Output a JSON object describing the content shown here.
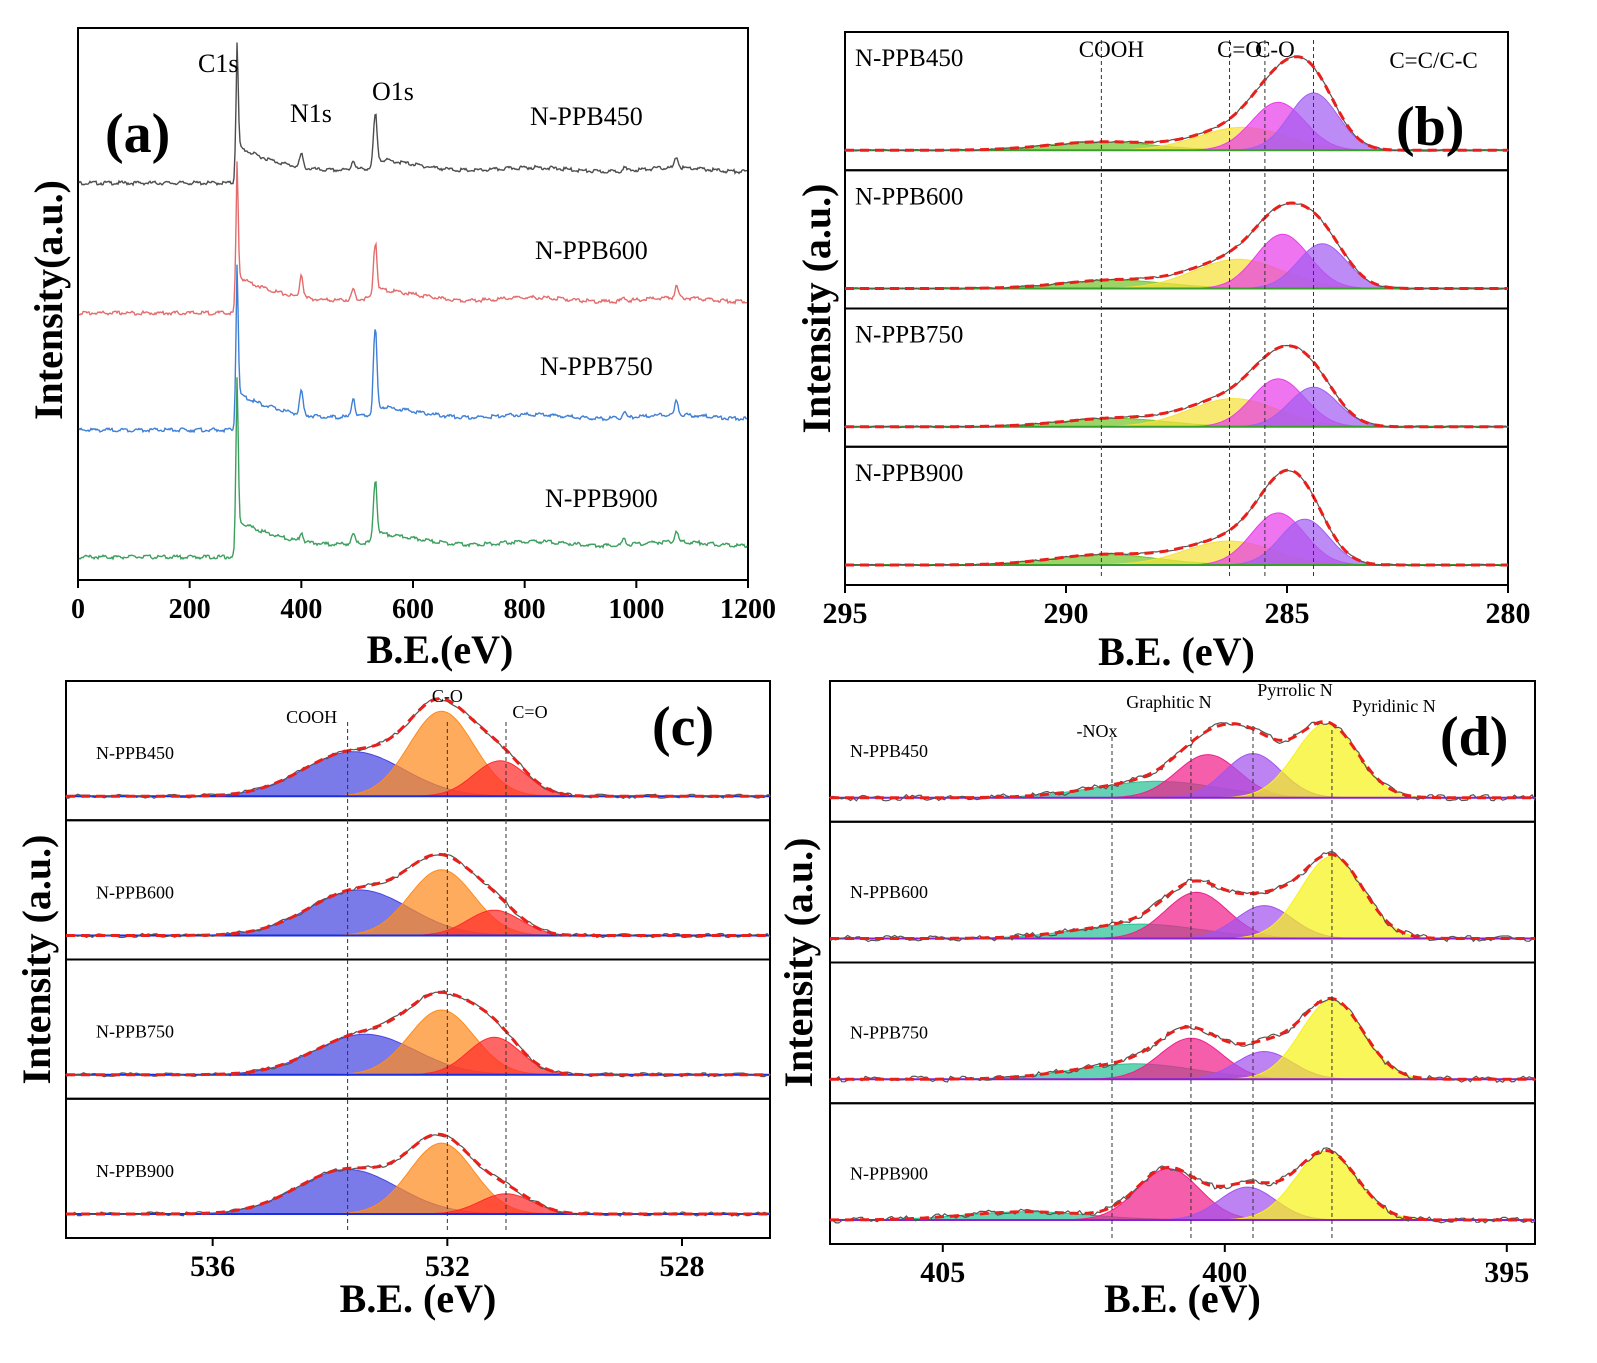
{
  "colors": {
    "black": "#000000",
    "gray_raw": "#555555",
    "envelope": "#e8201c",
    "survey": [
      "#4d4d4d",
      "#e46c6c",
      "#3f7fd6",
      "#3d9f5e"
    ],
    "b_components": [
      "#76c52c",
      "#f5e23a",
      "#e93ee9",
      "#a35ef1",
      "#1ee7f2"
    ],
    "c_components": [
      "#4747e0",
      "#ff8b1f",
      "#ff2b2b"
    ],
    "d_components": [
      "#29c295",
      "#f0208a",
      "#a353ef",
      "#f6f21a"
    ]
  },
  "chart_data": [
    {
      "panel_label": "(a)",
      "type": "line",
      "title": "",
      "xlabel": "B.E.(eV)",
      "ylabel": "Intensity(a.u.)",
      "xlim": [
        0,
        1200
      ],
      "x_ticks": [
        "0",
        "200",
        "400",
        "600",
        "800",
        "1000",
        "1200"
      ],
      "x_tick_values": [
        0,
        200,
        400,
        600,
        800,
        1000,
        1200
      ],
      "peak_labels": [
        {
          "text": "C1s",
          "x": 284.6
        },
        {
          "text": "N1s",
          "x": 399.5
        },
        {
          "text": "O1s",
          "x": 532.0
        }
      ],
      "series": [
        {
          "name": "N-PPB450",
          "peaks": [
            {
              "x": 284.6,
              "h": 0.55
            },
            {
              "x": 400,
              "h": 0.07
            },
            {
              "x": 493,
              "h": 0.05
            },
            {
              "x": 532,
              "h": 0.27
            },
            {
              "x": 978,
              "h": 0.02
            },
            {
              "x": 1072,
              "h": 0.06
            }
          ]
        },
        {
          "name": "N-PPB600",
          "peaks": [
            {
              "x": 284.6,
              "h": 0.6
            },
            {
              "x": 400,
              "h": 0.12
            },
            {
              "x": 493,
              "h": 0.05
            },
            {
              "x": 532,
              "h": 0.28
            },
            {
              "x": 978,
              "h": 0.02
            },
            {
              "x": 1072,
              "h": 0.06
            }
          ]
        },
        {
          "name": "N-PPB750",
          "peaks": [
            {
              "x": 284.6,
              "h": 0.68
            },
            {
              "x": 400,
              "h": 0.12
            },
            {
              "x": 493,
              "h": 0.1
            },
            {
              "x": 532,
              "h": 0.45
            },
            {
              "x": 978,
              "h": 0.03
            },
            {
              "x": 1072,
              "h": 0.08
            }
          ]
        },
        {
          "name": "N-PPB900",
          "peaks": [
            {
              "x": 284.6,
              "h": 0.75
            },
            {
              "x": 400,
              "h": 0.05
            },
            {
              "x": 493,
              "h": 0.05
            },
            {
              "x": 532,
              "h": 0.32
            },
            {
              "x": 978,
              "h": 0.03
            },
            {
              "x": 1072,
              "h": 0.06
            }
          ]
        }
      ]
    },
    {
      "panel_label": "(b)",
      "type": "area",
      "title": "",
      "xlabel": "B.E. (eV)",
      "ylabel": "Intensity (a.u.)",
      "xlim": [
        295,
        280
      ],
      "x_ticks": [
        "295",
        "290",
        "285",
        "280"
      ],
      "x_tick_values": [
        295,
        290,
        285,
        280
      ],
      "reference_lines": [
        {
          "label": "COOH",
          "x": 289.2
        },
        {
          "label": "C=O",
          "x": 286.3
        },
        {
          "label": "C-O",
          "x": 285.5
        },
        {
          "label": "C=C/C-C",
          "x": 284.4
        }
      ],
      "components": [
        {
          "label": "COOH",
          "width": 1.2
        },
        {
          "label": "C=O",
          "width": 1.0
        },
        {
          "label": "C-O",
          "width": 0.6
        },
        {
          "label": "C=C/C-C",
          "width": 0.55
        }
      ],
      "series": [
        {
          "name": "N-PPB450",
          "components": [
            {
              "center": 289.2,
              "height": 0.08
            },
            {
              "center": 286.0,
              "height": 0.22
            },
            {
              "center": 285.2,
              "height": 0.46
            },
            {
              "center": 284.4,
              "height": 0.55
            }
          ]
        },
        {
          "name": "N-PPB600",
          "components": [
            {
              "center": 288.9,
              "height": 0.08
            },
            {
              "center": 286.1,
              "height": 0.28
            },
            {
              "center": 285.1,
              "height": 0.52
            },
            {
              "center": 284.2,
              "height": 0.43
            }
          ]
        },
        {
          "name": "N-PPB750",
          "components": [
            {
              "center": 288.9,
              "height": 0.08
            },
            {
              "center": 286.2,
              "height": 0.27
            },
            {
              "center": 285.2,
              "height": 0.46
            },
            {
              "center": 284.4,
              "height": 0.38
            }
          ]
        },
        {
          "name": "N-PPB900",
          "components": [
            {
              "center": 289.1,
              "height": 0.1
            },
            {
              "center": 286.3,
              "height": 0.23
            },
            {
              "center": 285.2,
              "height": 0.5
            },
            {
              "center": 284.6,
              "height": 0.44
            }
          ]
        }
      ]
    },
    {
      "panel_label": "(c)",
      "type": "area",
      "title": "",
      "xlabel": "B.E. (eV)",
      "ylabel": "Intensity (a.u.)",
      "xlim": [
        538.5,
        526.5
      ],
      "x_ticks": [
        "536",
        "532",
        "528"
      ],
      "x_tick_values": [
        536,
        532,
        528
      ],
      "reference_lines": [
        {
          "label": "COOH",
          "x": 533.7
        },
        {
          "label": "C-O",
          "x": 532.0
        },
        {
          "label": "C=O",
          "x": 531.0
        }
      ],
      "components": [
        {
          "label": "COOH",
          "width": 0.85
        },
        {
          "label": "C-O",
          "width": 0.55
        },
        {
          "label": "C=O",
          "width": 0.45
        }
      ],
      "series": [
        {
          "name": "N-PPB450",
          "components": [
            {
              "center": 533.6,
              "height": 0.44
            },
            {
              "center": 532.1,
              "height": 0.84
            },
            {
              "center": 531.1,
              "height": 0.35
            }
          ]
        },
        {
          "name": "N-PPB600",
          "components": [
            {
              "center": 533.5,
              "height": 0.45
            },
            {
              "center": 532.1,
              "height": 0.65
            },
            {
              "center": 531.2,
              "height": 0.25
            }
          ]
        },
        {
          "name": "N-PPB750",
          "components": [
            {
              "center": 533.4,
              "height": 0.4
            },
            {
              "center": 532.1,
              "height": 0.64
            },
            {
              "center": 531.2,
              "height": 0.37
            }
          ]
        },
        {
          "name": "N-PPB900",
          "components": [
            {
              "center": 533.7,
              "height": 0.44
            },
            {
              "center": 532.1,
              "height": 0.7
            },
            {
              "center": 531.0,
              "height": 0.2
            }
          ]
        }
      ]
    },
    {
      "panel_label": "(d)",
      "type": "area",
      "title": "",
      "xlabel": "B.E. (eV)",
      "ylabel": "Intensity (a.u.)",
      "xlim": [
        407.0,
        394.5
      ],
      "x_ticks": [
        "405",
        "400",
        "395"
      ],
      "x_tick_values": [
        405,
        400,
        395
      ],
      "reference_lines": [
        {
          "label": "-NOx",
          "x": 402.0
        },
        {
          "label": "Graphitic N",
          "x": 400.6
        },
        {
          "label": "Pyrrolic N",
          "x": 399.5
        },
        {
          "label": "Pyridinic N",
          "x": 398.1
        }
      ],
      "components": [
        {
          "label": "-NOx",
          "width": 1.1
        },
        {
          "label": "Graphitic N",
          "width": 0.55
        },
        {
          "label": "Pyrrolic N",
          "width": 0.5
        },
        {
          "label": "Pyridinic N",
          "width": 0.55
        }
      ],
      "series": [
        {
          "name": "N-PPB450",
          "components": [
            {
              "center": 401.2,
              "height": 0.16
            },
            {
              "center": 400.3,
              "height": 0.42
            },
            {
              "center": 399.5,
              "height": 0.43
            },
            {
              "center": 398.2,
              "height": 0.72
            }
          ]
        },
        {
          "name": "N-PPB600",
          "components": [
            {
              "center": 401.5,
              "height": 0.14
            },
            {
              "center": 400.5,
              "height": 0.45
            },
            {
              "center": 399.3,
              "height": 0.32
            },
            {
              "center": 398.1,
              "height": 0.8
            }
          ]
        },
        {
          "name": "N-PPB750",
          "components": [
            {
              "center": 401.6,
              "height": 0.15
            },
            {
              "center": 400.6,
              "height": 0.4
            },
            {
              "center": 399.3,
              "height": 0.27
            },
            {
              "center": 398.1,
              "height": 0.77
            }
          ]
        },
        {
          "name": "N-PPB900",
          "components": [
            {
              "center": 403.5,
              "height": 0.08
            },
            {
              "center": 401.0,
              "height": 0.5
            },
            {
              "center": 399.6,
              "height": 0.32
            },
            {
              "center": 398.2,
              "height": 0.67
            }
          ]
        }
      ]
    }
  ]
}
